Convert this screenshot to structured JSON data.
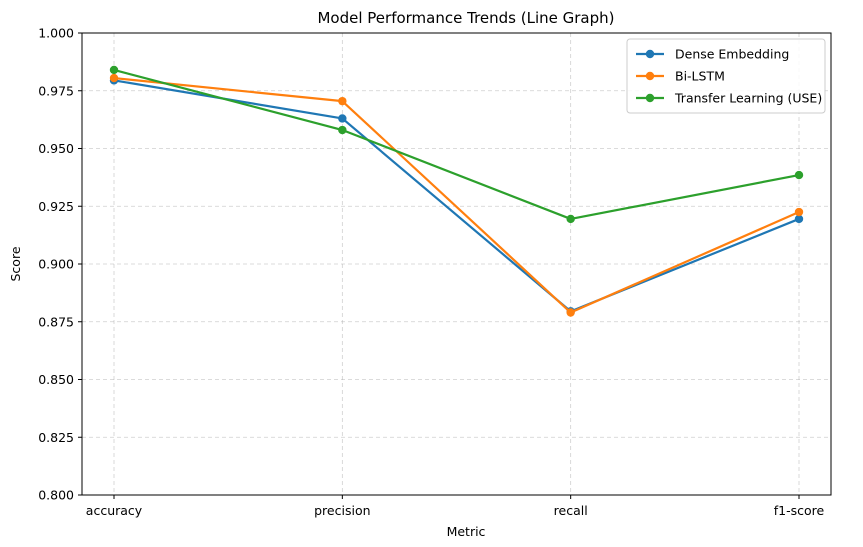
{
  "chart_data": {
    "type": "line",
    "title": "Model Performance Trends (Line Graph)",
    "xlabel": "Metric",
    "ylabel": "Score",
    "categories": [
      "accuracy",
      "precision",
      "recall",
      "f1-score"
    ],
    "ylim": [
      0.8,
      1.0
    ],
    "yticks": [
      "0.800",
      "0.825",
      "0.850",
      "0.875",
      "0.900",
      "0.925",
      "0.950",
      "0.975",
      "1.000"
    ],
    "grid": true,
    "legend_position": "top-right",
    "series": [
      {
        "name": "Dense Embedding",
        "color": "#1f77b4",
        "values": [
          0.9795,
          0.963,
          0.8795,
          0.9195
        ]
      },
      {
        "name": "Bi-LSTM",
        "color": "#ff7f0e",
        "values": [
          0.9805,
          0.9705,
          0.879,
          0.9225
        ]
      },
      {
        "name": "Transfer Learning (USE)",
        "color": "#2ca02c",
        "values": [
          0.984,
          0.958,
          0.9195,
          0.9385
        ]
      }
    ]
  }
}
